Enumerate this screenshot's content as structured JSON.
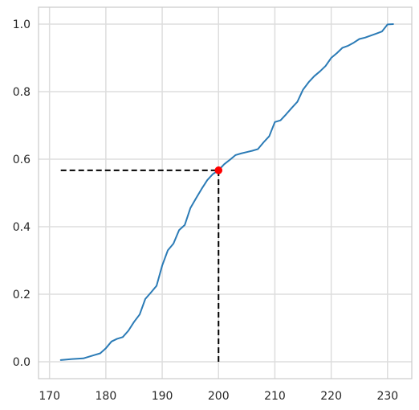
{
  "chart_data": {
    "type": "line",
    "title": "",
    "xlabel": "",
    "ylabel": "",
    "xlim": [
      168.05,
      234.3
    ],
    "ylim": [
      -0.05,
      1.05
    ],
    "grid": true,
    "legend": "none",
    "x_ticks": [
      170,
      180,
      190,
      200,
      210,
      220,
      230
    ],
    "x_tick_labels": [
      "170",
      "180",
      "190",
      "200",
      "210",
      "220",
      "230"
    ],
    "y_ticks": [
      0.0,
      0.2,
      0.4,
      0.6,
      0.8,
      1.0
    ],
    "y_tick_labels": [
      "0.0",
      "0.2",
      "0.4",
      "0.6",
      "0.8",
      "1.0"
    ],
    "series": [
      {
        "color": "#2b7bb6",
        "x": [
          172,
          174,
          176,
          178,
          179,
          180,
          181,
          182,
          183,
          184,
          185,
          186,
          187,
          188,
          189,
          190,
          191,
          192,
          193,
          194,
          195,
          196,
          197,
          198,
          199,
          200,
          201,
          202,
          203,
          204,
          205,
          206,
          207,
          208,
          209,
          210,
          211,
          212,
          213,
          214,
          215,
          216,
          217,
          218,
          219,
          220,
          221,
          222,
          223,
          224,
          225,
          226,
          227,
          228,
          229,
          230,
          231
        ],
        "y": [
          0.005,
          0.008,
          0.01,
          0.02,
          0.025,
          0.04,
          0.06,
          0.068,
          0.073,
          0.092,
          0.118,
          0.14,
          0.186,
          0.205,
          0.225,
          0.285,
          0.33,
          0.35,
          0.39,
          0.405,
          0.455,
          0.484,
          0.512,
          0.538,
          0.556,
          0.567,
          0.585,
          0.598,
          0.612,
          0.617,
          0.621,
          0.625,
          0.63,
          0.65,
          0.668,
          0.71,
          0.715,
          0.733,
          0.752,
          0.77,
          0.806,
          0.828,
          0.846,
          0.86,
          0.876,
          0.9,
          0.914,
          0.93,
          0.936,
          0.945,
          0.956,
          0.96,
          0.966,
          0.972,
          0.978,
          0.999,
          1.0
        ]
      }
    ],
    "marker": {
      "x": 200,
      "y": 0.567,
      "color": "#ff0000"
    },
    "reference_lines": [
      {
        "orientation": "horizontal",
        "y": 0.567,
        "from_x": 172,
        "to_x": 200,
        "style": "dashed",
        "color": "#000000"
      },
      {
        "orientation": "vertical",
        "x": 200,
        "from_y": 0.0,
        "to_y": 0.567,
        "style": "dashed",
        "color": "#000000"
      }
    ]
  }
}
